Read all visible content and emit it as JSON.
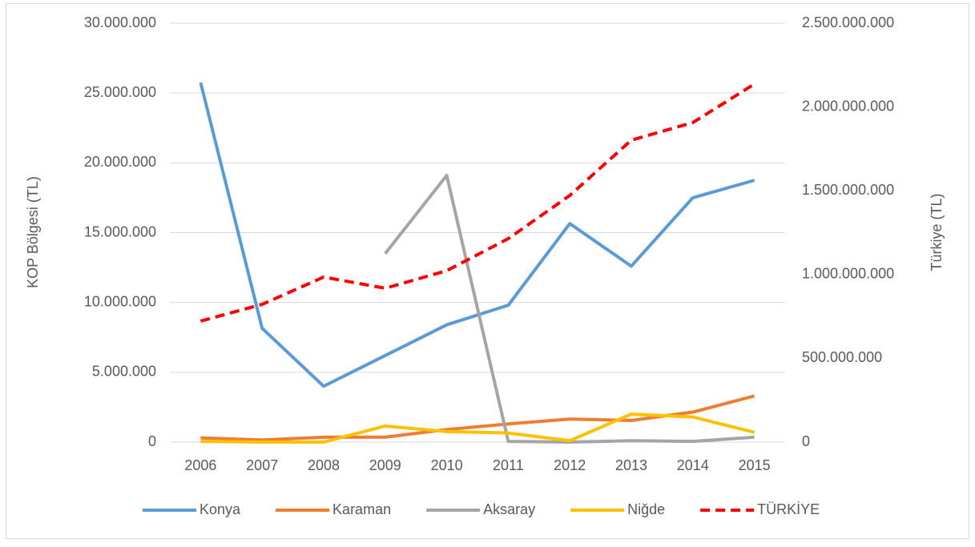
{
  "chart_data": {
    "type": "line",
    "categories": [
      "2006",
      "2007",
      "2008",
      "2009",
      "2010",
      "2011",
      "2012",
      "2013",
      "2014",
      "2015"
    ],
    "series": [
      {
        "name": "Konya",
        "color": "#5b9bd5",
        "values": [
          25750000,
          8150000,
          4000000,
          6200000,
          8400000,
          9800000,
          15650000,
          12600000,
          17500000,
          18750000
        ]
      },
      {
        "name": "Karaman",
        "color": "#ed7d31",
        "values": [
          300000,
          150000,
          350000,
          350000,
          900000,
          1300000,
          1650000,
          1550000,
          2150000,
          3300000
        ]
      },
      {
        "name": "Aksaray",
        "color": "#a5a5a5",
        "values": [
          null,
          null,
          null,
          13500000,
          19100000,
          50000,
          0,
          100000,
          50000,
          350000
        ]
      },
      {
        "name": "Niğde",
        "color": "#ffc000",
        "values": [
          50000,
          0,
          0,
          1150000,
          750000,
          650000,
          100000,
          2000000,
          1800000,
          700000
        ]
      },
      {
        "name": "TÜRKİYE",
        "color": "#ff0000",
        "dashed": true,
        "axis": "y2",
        "values": [
          722000000,
          822000000,
          985000000,
          918000000,
          1023000000,
          1214000000,
          1472000000,
          1802000000,
          1907000000,
          2137000000
        ]
      }
    ],
    "ylabel": "KOP Bölgesi (TL)",
    "y2label": "Türkiye (TL)",
    "ylim": [
      0,
      30000000
    ],
    "yticks": [
      0,
      {
        "value": 5000000,
        "label": "5.000.000"
      },
      {
        "value": 10000000,
        "label": "10.000.000"
      },
      {
        "value": 15000000,
        "label": "15.000.000"
      },
      {
        "value": 20000000,
        "label": "20.000.000"
      },
      {
        "value": 25000000,
        "label": "25.000.000"
      },
      {
        "value": 30000000,
        "label": "30.000.000"
      }
    ],
    "y2lim": [
      0,
      2500000000
    ],
    "y2ticks": [
      0,
      {
        "value": 500000000,
        "label": "500.000.000"
      },
      {
        "value": 1000000000,
        "label": "1.000.000.000"
      },
      {
        "value": 1500000000,
        "label": "1.500.000.000"
      },
      {
        "value": 2000000000,
        "label": "2.000.000.000"
      },
      {
        "value": 2500000000,
        "label": "2.500.000.000"
      }
    ],
    "grid": true,
    "legend": "bottom"
  }
}
